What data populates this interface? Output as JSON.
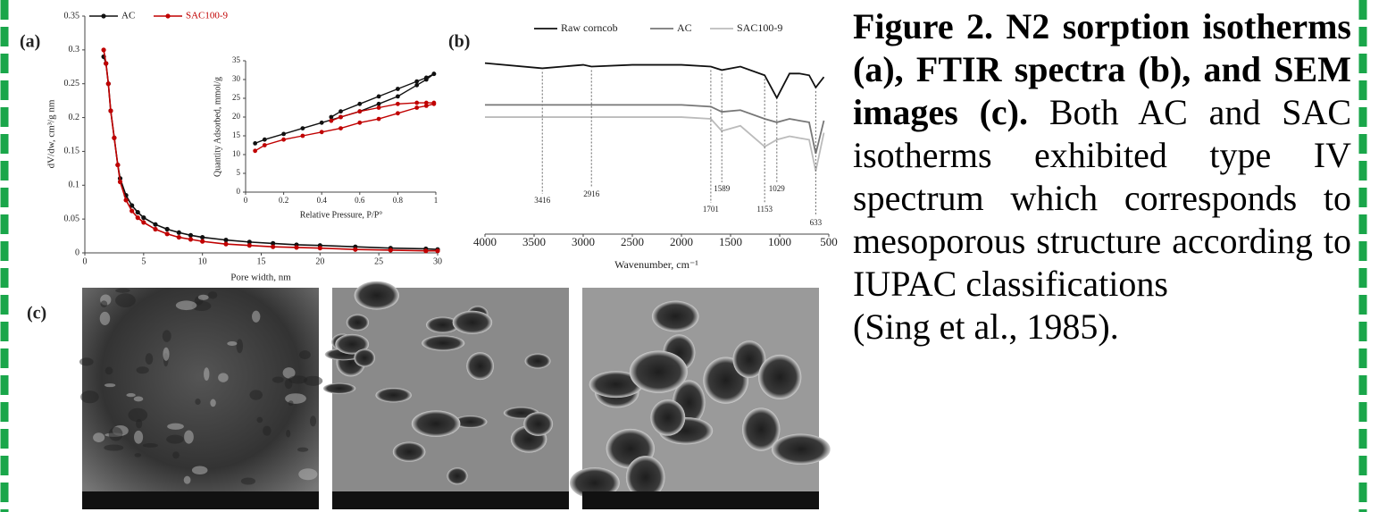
{
  "panels": [
    "(a)",
    "(b)",
    "(c)"
  ],
  "caption": {
    "bold": "Figure 2. N2 sorption isotherms (a), FTIR spectra (b), and SEM images (c).",
    "text": "Both AC and SAC isotherms exhibited type IV spectrum which corresponds to mesoporous structure according to IUPAC classifications",
    "citation": "(Sing et al., 1985)."
  },
  "chart_data": [
    {
      "type": "line",
      "xlabel": "Pore width, nm",
      "ylabel": "dV/dw, cm³/g nm",
      "x": [
        1.6,
        1.8,
        2,
        2.2,
        2.5,
        2.8,
        3,
        3.5,
        4,
        4.5,
        5,
        6,
        7,
        8,
        9,
        10,
        12,
        14,
        16,
        18,
        20,
        23,
        26,
        29,
        30
      ],
      "series": [
        {
          "name": "AC",
          "color": "#111111",
          "values": [
            0.29,
            0.28,
            0.25,
            0.21,
            0.17,
            0.13,
            0.11,
            0.085,
            0.07,
            0.06,
            0.052,
            0.042,
            0.035,
            0.03,
            0.026,
            0.023,
            0.019,
            0.016,
            0.014,
            0.012,
            0.011,
            0.009,
            0.007,
            0.006,
            0.005
          ]
        },
        {
          "name": "SAC100-9",
          "color": "#c00000",
          "values": [
            0.3,
            0.28,
            0.25,
            0.21,
            0.17,
            0.13,
            0.105,
            0.078,
            0.062,
            0.052,
            0.045,
            0.035,
            0.028,
            0.023,
            0.02,
            0.017,
            0.013,
            0.011,
            0.009,
            0.008,
            0.007,
            0.005,
            0.004,
            0.003,
            0.003
          ]
        }
      ],
      "xlim": [
        0,
        30
      ],
      "xticks": [
        0,
        5,
        10,
        15,
        20,
        25,
        30
      ],
      "ylim": [
        0,
        0.35
      ],
      "yticks": [
        0,
        0.05,
        0.1,
        0.15,
        0.2,
        0.25,
        0.3,
        0.35
      ],
      "inset": {
        "type": "line",
        "xlabel": "Relative Pressure, P/P°",
        "ylabel": "Quantity Adsorbed, mmol/g",
        "xlim": [
          0,
          1
        ],
        "xticks": [
          0,
          0.2,
          0.4,
          0.6,
          0.8,
          1
        ],
        "ylim": [
          0,
          35
        ],
        "yticks": [
          0,
          5,
          10,
          15,
          20,
          25,
          30,
          35
        ],
        "series": [
          {
            "color": "#111111",
            "x": [
              0.05,
              0.1,
              0.2,
              0.3,
              0.4,
              0.5,
              0.6,
              0.7,
              0.8,
              0.9,
              0.95,
              0.99
            ],
            "values": [
              13,
              14,
              15.5,
              17,
              18.5,
              20,
              21.5,
              23.5,
              25.5,
              28.5,
              30,
              31.5
            ]
          },
          {
            "color": "#111111",
            "x": [
              0.99,
              0.95,
              0.9,
              0.8,
              0.7,
              0.6,
              0.5,
              0.45
            ],
            "values": [
              31.5,
              30.5,
              29.5,
              27.5,
              25.5,
              23.5,
              21.5,
              20
            ]
          },
          {
            "color": "#c00000",
            "x": [
              0.05,
              0.1,
              0.2,
              0.3,
              0.4,
              0.5,
              0.6,
              0.7,
              0.8,
              0.9,
              0.95,
              0.99
            ],
            "values": [
              11,
              12.5,
              14,
              15,
              16,
              17,
              18.5,
              19.5,
              21,
              22.5,
              23,
              23.5
            ]
          },
          {
            "color": "#c00000",
            "x": [
              0.99,
              0.95,
              0.9,
              0.8,
              0.7,
              0.6,
              0.5,
              0.45
            ],
            "values": [
              23.8,
              23.8,
              23.8,
              23.5,
              22.5,
              21.5,
              20,
              19
            ]
          }
        ]
      }
    },
    {
      "type": "line",
      "xlabel": "Wavenumber, cm⁻¹",
      "x": [
        4000,
        3416,
        3000,
        2916,
        2500,
        2000,
        1701,
        1589,
        1400,
        1153,
        1029,
        900,
        800,
        700,
        633,
        550
      ],
      "series": [
        {
          "name": "Raw corncob",
          "color": "#111111",
          "values": [
            92,
            89,
            91,
            90,
            91,
            91,
            90,
            88,
            90,
            85,
            72,
            86,
            86,
            85,
            78,
            84
          ]
        },
        {
          "name": "AC",
          "color": "#777777",
          "values": [
            68,
            68,
            68,
            68,
            68,
            68,
            67,
            64,
            65,
            60,
            58,
            60,
            59,
            58,
            40,
            59
          ]
        },
        {
          "name": "SAC100-9",
          "color": "#bbbbbb",
          "values": [
            61,
            61,
            61,
            61,
            61,
            61,
            60,
            53,
            56,
            44,
            48,
            50,
            49,
            48,
            30,
            52
          ]
        }
      ],
      "peaks": [
        3416,
        2916,
        1701,
        1589,
        1153,
        1029,
        633
      ],
      "xlim": [
        4000,
        500
      ],
      "xticks": [
        4000,
        3500,
        3000,
        2500,
        2000,
        1500,
        1000,
        500
      ],
      "ylim": [
        0,
        100
      ]
    }
  ]
}
